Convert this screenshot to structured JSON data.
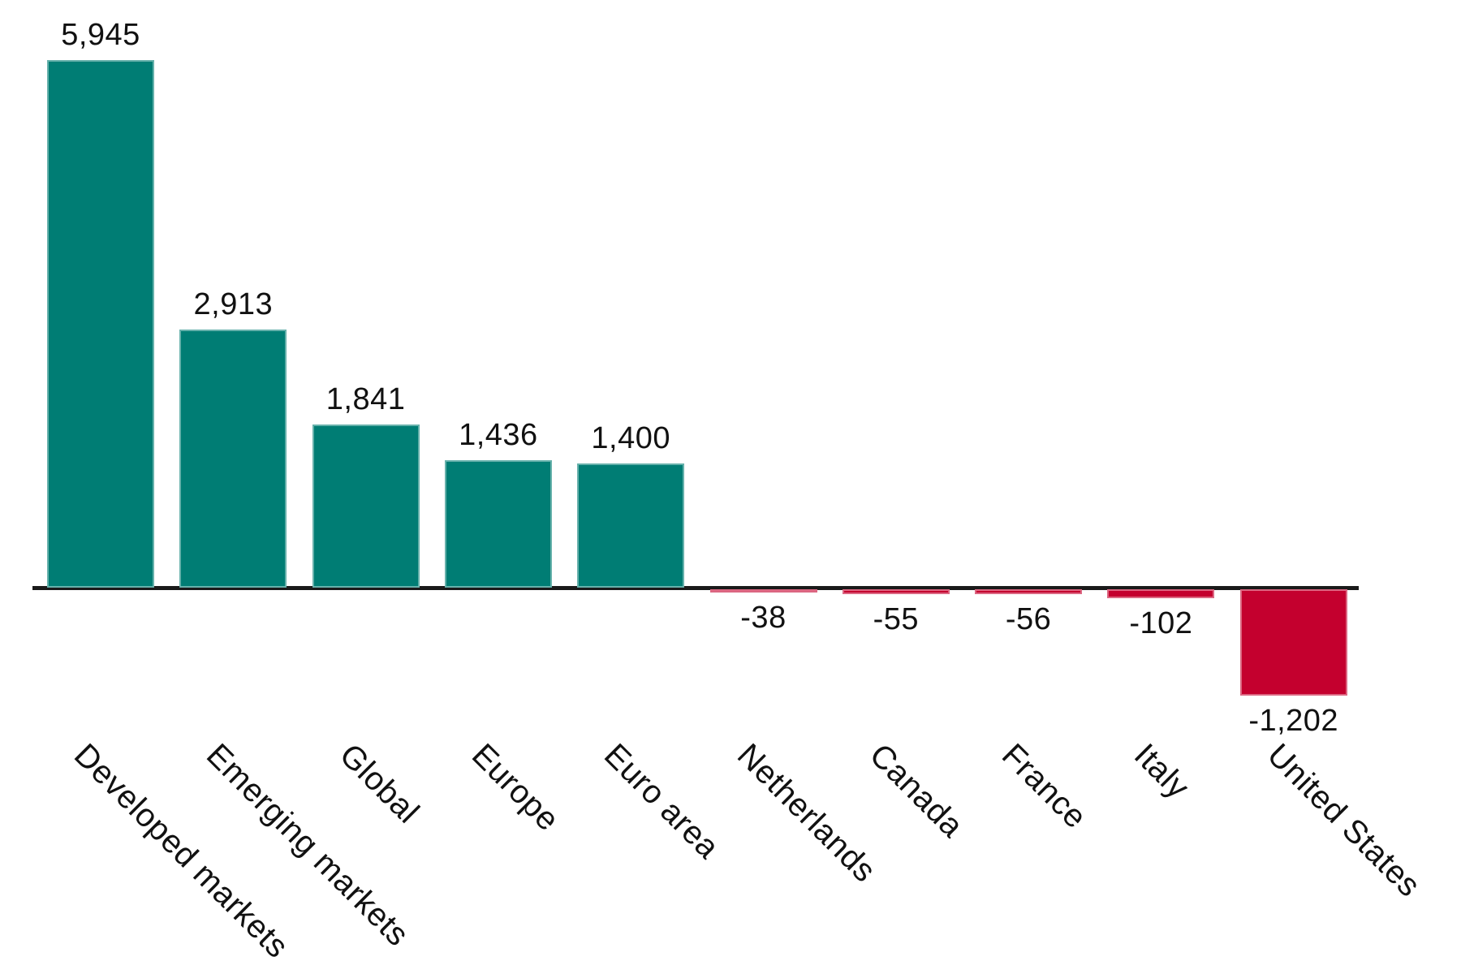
{
  "chart_data": {
    "type": "bar",
    "orientation": "vertical",
    "title": "",
    "xlabel": "",
    "ylabel": "",
    "grid": false,
    "legend_position": "none",
    "ylim": [
      -1300,
      6100
    ],
    "categories": [
      "Developed markets",
      "Emerging markets",
      "Global",
      "Europe",
      "Euro area",
      "Netherlands",
      "Canada",
      "France",
      "Italy",
      "United States"
    ],
    "values": [
      5945,
      2913,
      1841,
      1436,
      1400,
      -38,
      -55,
      -56,
      -102,
      -1202
    ],
    "value_labels": [
      "5,945",
      "2,913",
      "1,841",
      "1,436",
      "1,400",
      "-38",
      "-55",
      "-56",
      "-102",
      "-1,202"
    ],
    "colors": {
      "positive_bar": "#007D74",
      "negative_bar": "#C4002E",
      "axis": "#1a1a1a",
      "label_text": "#111111"
    },
    "color_rule": "positive values teal, negative values crimson",
    "tick_label_rotation_deg": 45
  }
}
